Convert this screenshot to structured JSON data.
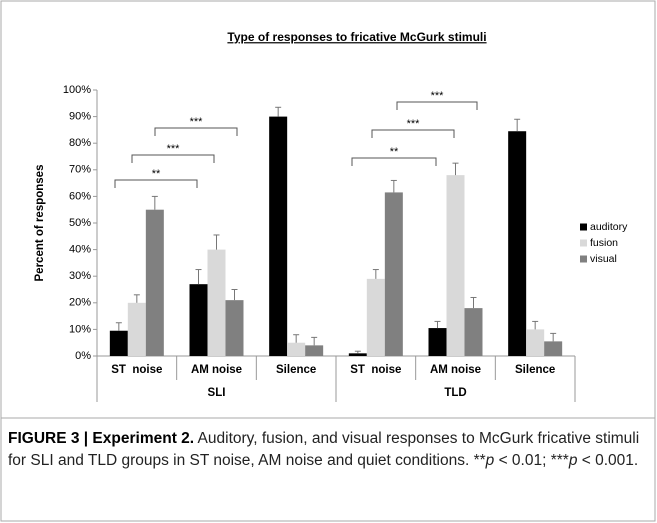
{
  "chart_data": {
    "type": "bar",
    "title": "Type of responses to fricative McGurk stimuli",
    "ylabel": "Percent of responses",
    "categories": [
      "ST  noise",
      "AM noise",
      "Silence",
      "ST  noise",
      "AM noise",
      "Silence"
    ],
    "groups": [
      "SLI",
      "TLD"
    ],
    "series": [
      {
        "name": "auditory",
        "color": "#000000",
        "values": [
          9.5,
          27,
          90,
          1,
          10.5,
          84.5
        ],
        "errors": [
          3,
          5.5,
          3.5,
          0.8,
          2.5,
          4.5
        ]
      },
      {
        "name": "fusion",
        "color": "#d9d9d9",
        "values": [
          20,
          40,
          5,
          29,
          68,
          10
        ],
        "errors": [
          3,
          5.5,
          3,
          3.5,
          4.5,
          3
        ]
      },
      {
        "name": "visual",
        "color": "#808080",
        "values": [
          55,
          21,
          4,
          61.5,
          18,
          5.5
        ],
        "errors": [
          5,
          4,
          3,
          4.5,
          4,
          3
        ]
      }
    ],
    "ylim": [
      0,
      100
    ],
    "yticks": [
      {
        "value": 0,
        "label": "0%"
      },
      {
        "value": 10,
        "label": "10%"
      },
      {
        "value": 20,
        "label": "20%"
      },
      {
        "value": 30,
        "label": "30%"
      },
      {
        "value": 40,
        "label": "40%"
      },
      {
        "value": 50,
        "label": "50%"
      },
      {
        "value": 60,
        "label": "60%"
      },
      {
        "value": 70,
        "label": "70%"
      },
      {
        "value": 80,
        "label": "80%"
      },
      {
        "value": 90,
        "label": "90%"
      },
      {
        "value": 100,
        "label": "100%"
      }
    ],
    "annotations": [
      "**",
      "***",
      "***",
      "**",
      "***",
      "***"
    ],
    "legend": "right"
  },
  "caption": {
    "label": "FIGURE 3 | Experiment 2.",
    "parts": [
      {
        "text": " Auditory, fusion, and visual responses to McGurk fricative stimuli for SLI and TLD groups in ST noise, AM noise and quiet conditions. **",
        "italic": false
      },
      {
        "text": "p",
        "italic": true
      },
      {
        "text": " < 0.01; ***",
        "italic": false
      },
      {
        "text": "p",
        "italic": true
      },
      {
        "text": " < 0.001.",
        "italic": false
      }
    ]
  }
}
